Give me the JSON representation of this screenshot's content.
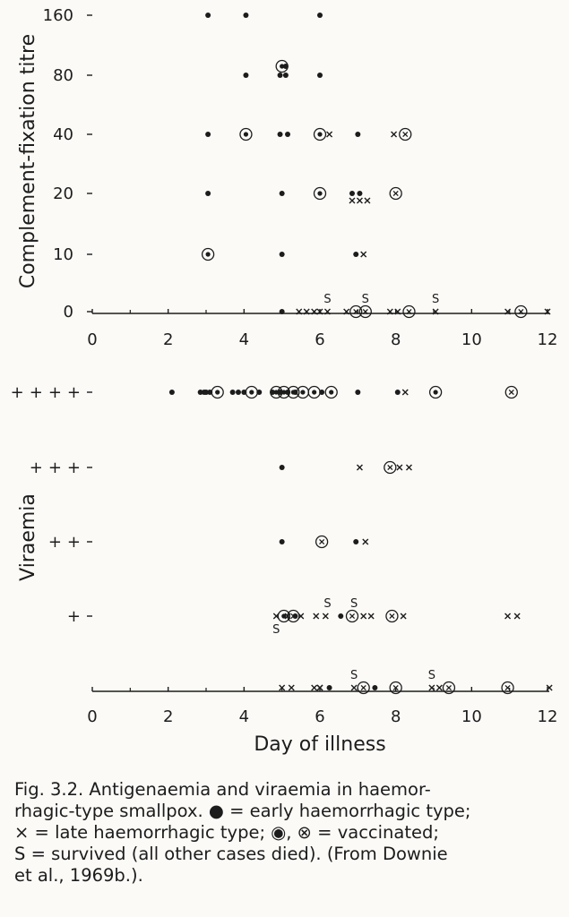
{
  "chart_data": [
    {
      "type": "scatter",
      "panel": "top",
      "ylabel": "Complement-fixation titre",
      "xlabel": "",
      "yticks": [
        "0",
        "10",
        "20",
        "40",
        "80",
        "160"
      ],
      "xticks": [
        "0",
        "2",
        "4",
        "6",
        "8",
        "10",
        "12"
      ],
      "xlim": [
        0,
        12
      ],
      "grid": false,
      "marker_types": [
        "early",
        "late",
        "early-vaccinated",
        "late-vaccinated",
        "survived"
      ],
      "points": [
        {
          "x": 3.05,
          "y": "160",
          "m": "early"
        },
        {
          "x": 4.05,
          "y": "160",
          "m": "early"
        },
        {
          "x": 6.0,
          "y": "160",
          "m": "early"
        },
        {
          "x": 4.05,
          "y": "80",
          "m": "early"
        },
        {
          "x": 4.95,
          "y": "80",
          "m": "early"
        },
        {
          "x": 5.1,
          "y": "80",
          "m": "early"
        },
        {
          "x": 5.1,
          "y": "85",
          "m": "early"
        },
        {
          "x": 5.0,
          "y": "85",
          "m": "early-vaccinated"
        },
        {
          "x": 6.0,
          "y": "80",
          "m": "early"
        },
        {
          "x": 3.05,
          "y": "40",
          "m": "early"
        },
        {
          "x": 4.05,
          "y": "40",
          "m": "early-vaccinated"
        },
        {
          "x": 4.95,
          "y": "40",
          "m": "early"
        },
        {
          "x": 5.15,
          "y": "40",
          "m": "early"
        },
        {
          "x": 6.0,
          "y": "40",
          "m": "early-vaccinated"
        },
        {
          "x": 6.25,
          "y": "40",
          "m": "late"
        },
        {
          "x": 7.0,
          "y": "40",
          "m": "early"
        },
        {
          "x": 7.95,
          "y": "40",
          "m": "late"
        },
        {
          "x": 8.25,
          "y": "40",
          "m": "late-vaccinated"
        },
        {
          "x": 3.05,
          "y": "20",
          "m": "early"
        },
        {
          "x": 5.0,
          "y": "20",
          "m": "early"
        },
        {
          "x": 6.0,
          "y": "20",
          "m": "early-vaccinated"
        },
        {
          "x": 6.85,
          "y": "20",
          "m": "early"
        },
        {
          "x": 7.05,
          "y": "20",
          "m": "early"
        },
        {
          "x": 6.85,
          "y": "19",
          "m": "late"
        },
        {
          "x": 7.05,
          "y": "19",
          "m": "late"
        },
        {
          "x": 7.25,
          "y": "19",
          "m": "late"
        },
        {
          "x": 8.0,
          "y": "20",
          "m": "late-vaccinated"
        },
        {
          "x": 3.05,
          "y": "10",
          "m": "early-vaccinated"
        },
        {
          "x": 5.0,
          "y": "10",
          "m": "early"
        },
        {
          "x": 6.95,
          "y": "10",
          "m": "early"
        },
        {
          "x": 7.15,
          "y": "10",
          "m": "late"
        },
        {
          "x": 5.0,
          "y": "0",
          "m": "early"
        },
        {
          "x": 5.45,
          "y": "0",
          "m": "late"
        },
        {
          "x": 5.65,
          "y": "0",
          "m": "late"
        },
        {
          "x": 5.85,
          "y": "0",
          "m": "late"
        },
        {
          "x": 6.0,
          "y": "0",
          "m": "late"
        },
        {
          "x": 6.2,
          "y": "0",
          "m": "late"
        },
        {
          "x": 6.2,
          "y": "0",
          "m": "survived"
        },
        {
          "x": 6.7,
          "y": "0",
          "m": "late"
        },
        {
          "x": 6.95,
          "y": "0",
          "m": "late-vaccinated"
        },
        {
          "x": 7.2,
          "y": "0",
          "m": "late-vaccinated"
        },
        {
          "x": 7.2,
          "y": "0",
          "m": "survived"
        },
        {
          "x": 7.85,
          "y": "0",
          "m": "late"
        },
        {
          "x": 8.05,
          "y": "0",
          "m": "late"
        },
        {
          "x": 8.35,
          "y": "0",
          "m": "late-vaccinated"
        },
        {
          "x": 9.05,
          "y": "0",
          "m": "late"
        },
        {
          "x": 9.05,
          "y": "0",
          "m": "survived"
        },
        {
          "x": 10.95,
          "y": "0",
          "m": "late"
        },
        {
          "x": 11.3,
          "y": "0",
          "m": "late-vaccinated"
        },
        {
          "x": 12.0,
          "y": "0",
          "m": "late"
        }
      ]
    },
    {
      "type": "scatter",
      "panel": "bottom",
      "ylabel": "Viraemia",
      "xlabel": "Day of illness",
      "yticks": [
        "",
        "+",
        "++",
        "+++",
        "++++"
      ],
      "xticks": [
        "0",
        "2",
        "4",
        "6",
        "8",
        "10",
        "12"
      ],
      "xlim": [
        0,
        12
      ],
      "grid": false,
      "points": [
        {
          "x": 2.1,
          "y": "++++",
          "m": "early"
        },
        {
          "x": 2.85,
          "y": "++++",
          "m": "early"
        },
        {
          "x": 2.95,
          "y": "++++",
          "m": "early"
        },
        {
          "x": 3.0,
          "y": "++++",
          "m": "early"
        },
        {
          "x": 3.1,
          "y": "++++",
          "m": "early"
        },
        {
          "x": 3.3,
          "y": "++++",
          "m": "early-vaccinated"
        },
        {
          "x": 3.7,
          "y": "++++",
          "m": "early"
        },
        {
          "x": 3.85,
          "y": "++++",
          "m": "early"
        },
        {
          "x": 4.0,
          "y": "++++",
          "m": "early"
        },
        {
          "x": 4.2,
          "y": "++++",
          "m": "early-vaccinated"
        },
        {
          "x": 4.4,
          "y": "++++",
          "m": "early"
        },
        {
          "x": 4.75,
          "y": "++++",
          "m": "early"
        },
        {
          "x": 4.85,
          "y": "++++",
          "m": "early-vaccinated"
        },
        {
          "x": 5.05,
          "y": "++++",
          "m": "early-vaccinated"
        },
        {
          "x": 5.3,
          "y": "++++",
          "m": "early-vaccinated"
        },
        {
          "x": 5.55,
          "y": "++++",
          "m": "early-vaccinated"
        },
        {
          "x": 5.85,
          "y": "++++",
          "m": "early-vaccinated"
        },
        {
          "x": 6.05,
          "y": "++++",
          "m": "early"
        },
        {
          "x": 6.3,
          "y": "++++",
          "m": "early-vaccinated"
        },
        {
          "x": 4.95,
          "y": "++++",
          "m": "early"
        },
        {
          "x": 5.15,
          "y": "++++",
          "m": "early"
        },
        {
          "x": 5.35,
          "y": "++++",
          "m": "early"
        },
        {
          "x": 7.0,
          "y": "++++",
          "m": "early"
        },
        {
          "x": 8.05,
          "y": "++++",
          "m": "early"
        },
        {
          "x": 8.25,
          "y": "++++",
          "m": "late"
        },
        {
          "x": 9.05,
          "y": "++++",
          "m": "early-vaccinated"
        },
        {
          "x": 11.05,
          "y": "++++",
          "m": "late-vaccinated"
        },
        {
          "x": 5.0,
          "y": "+++",
          "m": "early"
        },
        {
          "x": 7.05,
          "y": "+++",
          "m": "late"
        },
        {
          "x": 7.85,
          "y": "+++",
          "m": "late-vaccinated"
        },
        {
          "x": 8.1,
          "y": "+++",
          "m": "late"
        },
        {
          "x": 8.35,
          "y": "+++",
          "m": "late"
        },
        {
          "x": 5.0,
          "y": "++",
          "m": "early"
        },
        {
          "x": 6.05,
          "y": "++",
          "m": "late-vaccinated"
        },
        {
          "x": 6.95,
          "y": "++",
          "m": "early"
        },
        {
          "x": 7.2,
          "y": "++",
          "m": "late"
        },
        {
          "x": 4.85,
          "y": "+",
          "m": "late"
        },
        {
          "x": 5.05,
          "y": "+",
          "m": "early-vaccinated"
        },
        {
          "x": 5.3,
          "y": "+",
          "m": "late-vaccinated"
        },
        {
          "x": 5.5,
          "y": "+",
          "m": "late"
        },
        {
          "x": 4.85,
          "y": "+",
          "m": "survived"
        },
        {
          "x": 5.15,
          "y": "+",
          "m": "late"
        },
        {
          "x": 5.35,
          "y": "+",
          "m": "early"
        },
        {
          "x": 5.9,
          "y": "+",
          "m": "late"
        },
        {
          "x": 6.15,
          "y": "+",
          "m": "late"
        },
        {
          "x": 6.2,
          "y": "+",
          "m": "survived"
        },
        {
          "x": 6.55,
          "y": "+",
          "m": "early"
        },
        {
          "x": 6.85,
          "y": "+",
          "m": "late-vaccinated"
        },
        {
          "x": 6.9,
          "y": "+",
          "m": "survived"
        },
        {
          "x": 7.15,
          "y": "+",
          "m": "late"
        },
        {
          "x": 7.35,
          "y": "+",
          "m": "late"
        },
        {
          "x": 7.9,
          "y": "+",
          "m": "late-vaccinated"
        },
        {
          "x": 8.2,
          "y": "+",
          "m": "late"
        },
        {
          "x": 10.95,
          "y": "+",
          "m": "late"
        },
        {
          "x": 11.2,
          "y": "+",
          "m": "late"
        },
        {
          "x": 5.0,
          "y": "",
          "m": "late"
        },
        {
          "x": 5.25,
          "y": "",
          "m": "late"
        },
        {
          "x": 5.85,
          "y": "",
          "m": "late"
        },
        {
          "x": 6.0,
          "y": "",
          "m": "late"
        },
        {
          "x": 6.25,
          "y": "",
          "m": "early"
        },
        {
          "x": 6.9,
          "y": "",
          "m": "late"
        },
        {
          "x": 6.9,
          "y": "",
          "m": "survived"
        },
        {
          "x": 7.15,
          "y": "",
          "m": "late-vaccinated"
        },
        {
          "x": 7.45,
          "y": "",
          "m": "early"
        },
        {
          "x": 8.0,
          "y": "",
          "m": "late-vaccinated"
        },
        {
          "x": 8.95,
          "y": "",
          "m": "late"
        },
        {
          "x": 8.95,
          "y": "",
          "m": "survived"
        },
        {
          "x": 9.15,
          "y": "",
          "m": "late"
        },
        {
          "x": 9.4,
          "y": "",
          "m": "late-vaccinated"
        },
        {
          "x": 10.95,
          "y": "",
          "m": "late-vaccinated"
        },
        {
          "x": 12.05,
          "y": "",
          "m": "late"
        },
        {
          "x": 6.0,
          "y": "",
          "m": "late"
        }
      ]
    }
  ],
  "caption": {
    "line1": "Fig.  3.2.  Antigenaemia  and  viraemia  in  haemor-",
    "line2": "rhagic-type smallpox.  ● = early haemorrhagic type;",
    "line3": "×  =  late  haemorrhagic  type;  ◉,  ⊗  =  vaccinated;",
    "line4": "S = survived (all other cases died).  (From Downie",
    "line5": "et al., 1969b.)."
  }
}
